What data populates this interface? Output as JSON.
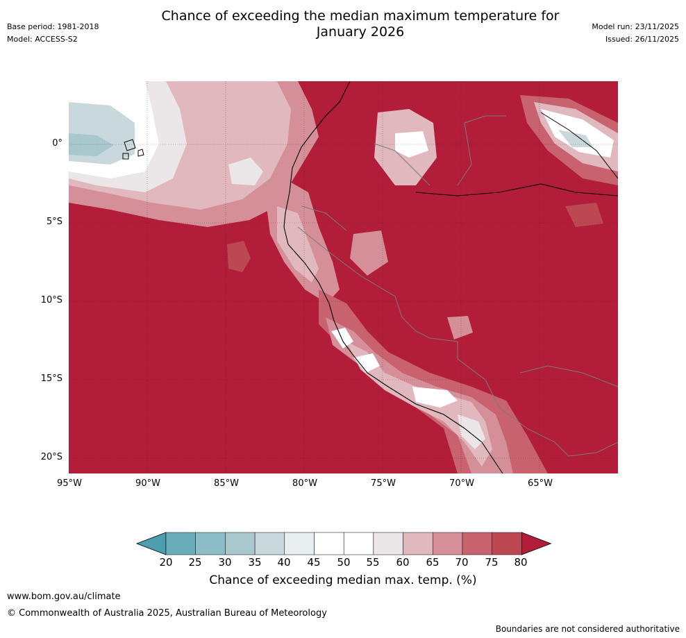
{
  "header": {
    "title_line1": "Chance of exceeding the median maximum temperature for",
    "title_line2": "January 2026",
    "base_period": "Base period: 1981-2018",
    "model": "Model: ACCESS-S2",
    "model_run": "Model run: 23/11/2025",
    "issued": "Issued: 26/11/2025"
  },
  "map": {
    "lat_labels": [
      "0°",
      "5°S",
      "10°S",
      "15°S",
      "20°S"
    ],
    "lon_labels": [
      "95°W",
      "90°W",
      "85°W",
      "80°W",
      "75°W",
      "70°W",
      "65°W"
    ]
  },
  "colorbar": {
    "ticks": [
      "20",
      "25",
      "30",
      "35",
      "40",
      "45",
      "50",
      "55",
      "60",
      "65",
      "70",
      "75",
      "80"
    ],
    "colors": [
      "#4a9eae",
      "#6aaeba",
      "#8cbcc6",
      "#a8c8ce",
      "#c8d8dc",
      "#e8eef0",
      "#ffffff",
      "#ffffff",
      "#ebe6e8",
      "#e0b8bd",
      "#d48f98",
      "#c8626e",
      "#bc4854",
      "#b21e3a"
    ],
    "title": "Chance of exceeding median max. temp. (%)"
  },
  "footer": {
    "url": "www.bom.gov.au/climate",
    "copyright": "© Commonwealth of Australia 2025, Australian Bureau of Meteorology",
    "disclaimer": "Boundaries are not considered authoritative"
  }
}
